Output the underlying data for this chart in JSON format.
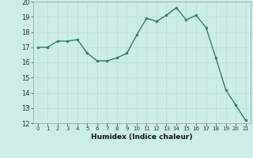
{
  "x": [
    0,
    1,
    2,
    3,
    4,
    5,
    6,
    7,
    8,
    9,
    10,
    11,
    12,
    13,
    14,
    15,
    16,
    17,
    18,
    19,
    20,
    21
  ],
  "y": [
    17.0,
    17.0,
    17.4,
    17.4,
    17.5,
    16.6,
    16.1,
    16.1,
    16.3,
    16.6,
    17.8,
    18.9,
    18.7,
    19.1,
    19.6,
    18.8,
    19.1,
    18.3,
    16.3,
    14.2,
    13.2,
    12.2
  ],
  "line_color": "#2e7d6e",
  "marker_color": "#2e7d6e",
  "bg_color": "#cceee8",
  "grid_color": "#b8ddd6",
  "xlabel": "Humidex (Indice chaleur)",
  "ylim": [
    12,
    20
  ],
  "xlim": [
    -0.5,
    21.5
  ],
  "yticks": [
    12,
    13,
    14,
    15,
    16,
    17,
    18,
    19,
    20
  ],
  "xticks": [
    0,
    1,
    2,
    3,
    4,
    5,
    6,
    7,
    8,
    9,
    10,
    11,
    12,
    13,
    14,
    15,
    16,
    17,
    18,
    19,
    20,
    21
  ]
}
